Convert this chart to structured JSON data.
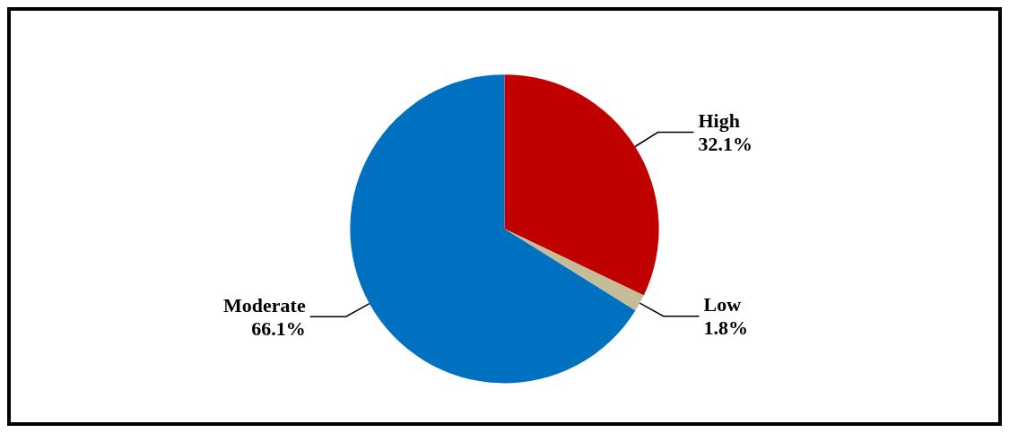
{
  "chart_data": {
    "type": "pie",
    "categories": [
      "High",
      "Low",
      "Moderate"
    ],
    "values": [
      32.1,
      1.8,
      66.1
    ],
    "value_labels": [
      "32.1%",
      "1.8%",
      "66.1%"
    ],
    "colors": [
      "#c00000",
      "#c4bd97",
      "#0070c0"
    ],
    "legend": false
  }
}
